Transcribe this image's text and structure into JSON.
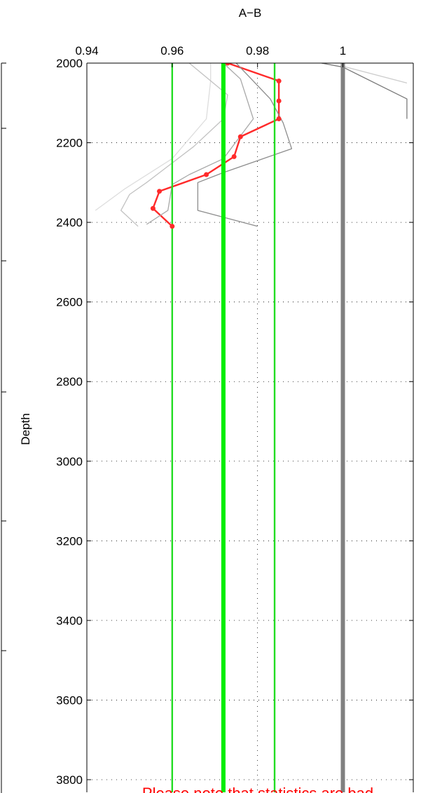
{
  "chart_data": {
    "type": "line",
    "title": "A−B",
    "xlabel": "",
    "ylabel": "Depth",
    "xlim": [
      0.94,
      1.0165
    ],
    "ylim": [
      3800,
      2000
    ],
    "y_reversed": true,
    "x_ticks": [
      0.94,
      0.96,
      0.98,
      1
    ],
    "x_tick_labels": [
      "0.94",
      "0.96",
      "0.98",
      "1"
    ],
    "y_ticks": [
      2000,
      2200,
      2400,
      2600,
      2800,
      3000,
      3200,
      3400,
      3600,
      3800
    ],
    "grid": true,
    "note": "Please note that statistics are bad",
    "vertical_lines": [
      {
        "x": 0.96,
        "color": "#22dd22",
        "width": "thin"
      },
      {
        "x": 0.972,
        "color": "#00ee00",
        "width": "thick"
      },
      {
        "x": 0.984,
        "color": "#22dd22",
        "width": "thin"
      },
      {
        "x": 1.0,
        "color": "#808080",
        "width": "thick"
      }
    ],
    "series": [
      {
        "color": "#ff2a2a",
        "markers": true,
        "points": [
          {
            "x": 0.973,
            "y": 2000
          },
          {
            "x": 0.985,
            "y": 2045
          },
          {
            "x": 0.985,
            "y": 2095
          },
          {
            "x": 0.985,
            "y": 2140
          },
          {
            "x": 0.976,
            "y": 2185
          },
          {
            "x": 0.9745,
            "y": 2235
          },
          {
            "x": 0.968,
            "y": 2280
          },
          {
            "x": 0.957,
            "y": 2322
          },
          {
            "x": 0.9555,
            "y": 2365
          },
          {
            "x": 0.96,
            "y": 2410
          }
        ]
      },
      {
        "color": "#dddddd",
        "markers": false,
        "points": [
          {
            "x": 0.969,
            "y": 2000
          },
          {
            "x": 0.969,
            "y": 2045
          },
          {
            "x": 0.968,
            "y": 2140
          },
          {
            "x": 0.96,
            "y": 2240
          },
          {
            "x": 0.949,
            "y": 2315
          },
          {
            "x": 0.942,
            "y": 2370
          }
        ]
      },
      {
        "color": "#c2c2c2",
        "markers": false,
        "points": [
          {
            "x": 0.964,
            "y": 2000
          },
          {
            "x": 0.973,
            "y": 2080
          },
          {
            "x": 0.972,
            "y": 2140
          },
          {
            "x": 0.965,
            "y": 2210
          },
          {
            "x": 0.954,
            "y": 2300
          },
          {
            "x": 0.95,
            "y": 2330
          },
          {
            "x": 0.948,
            "y": 2370
          },
          {
            "x": 0.952,
            "y": 2410
          }
        ]
      },
      {
        "color": "#a8a8a8",
        "markers": false,
        "points": [
          {
            "x": 0.972,
            "y": 2000
          },
          {
            "x": 0.976,
            "y": 2040
          },
          {
            "x": 0.979,
            "y": 2140
          },
          {
            "x": 0.972,
            "y": 2240
          },
          {
            "x": 0.964,
            "y": 2280
          },
          {
            "x": 0.96,
            "y": 2305
          },
          {
            "x": 0.959,
            "y": 2370
          },
          {
            "x": 0.954,
            "y": 2405
          }
        ]
      },
      {
        "color": "#8c8c8c",
        "markers": false,
        "points": [
          {
            "x": 0.975,
            "y": 2000
          },
          {
            "x": 0.983,
            "y": 2090
          },
          {
            "x": 0.986,
            "y": 2150
          },
          {
            "x": 0.988,
            "y": 2215
          },
          {
            "x": 0.98,
            "y": 2245
          },
          {
            "x": 0.972,
            "y": 2275
          },
          {
            "x": 0.966,
            "y": 2300
          },
          {
            "x": 0.966,
            "y": 2370
          },
          {
            "x": 0.98,
            "y": 2410
          }
        ]
      },
      {
        "color": "#7a7a7a",
        "markers": false,
        "points": [
          {
            "x": 0.995,
            "y": 2000
          },
          {
            "x": 1.0,
            "y": 2010
          },
          {
            "x": 1.015,
            "y": 2090
          },
          {
            "x": 1.015,
            "y": 2140
          }
        ]
      },
      {
        "color": "#cccccc",
        "markers": false,
        "points": [
          {
            "x": 1.0,
            "y": 2008
          },
          {
            "x": 1.015,
            "y": 2050
          }
        ]
      }
    ]
  }
}
